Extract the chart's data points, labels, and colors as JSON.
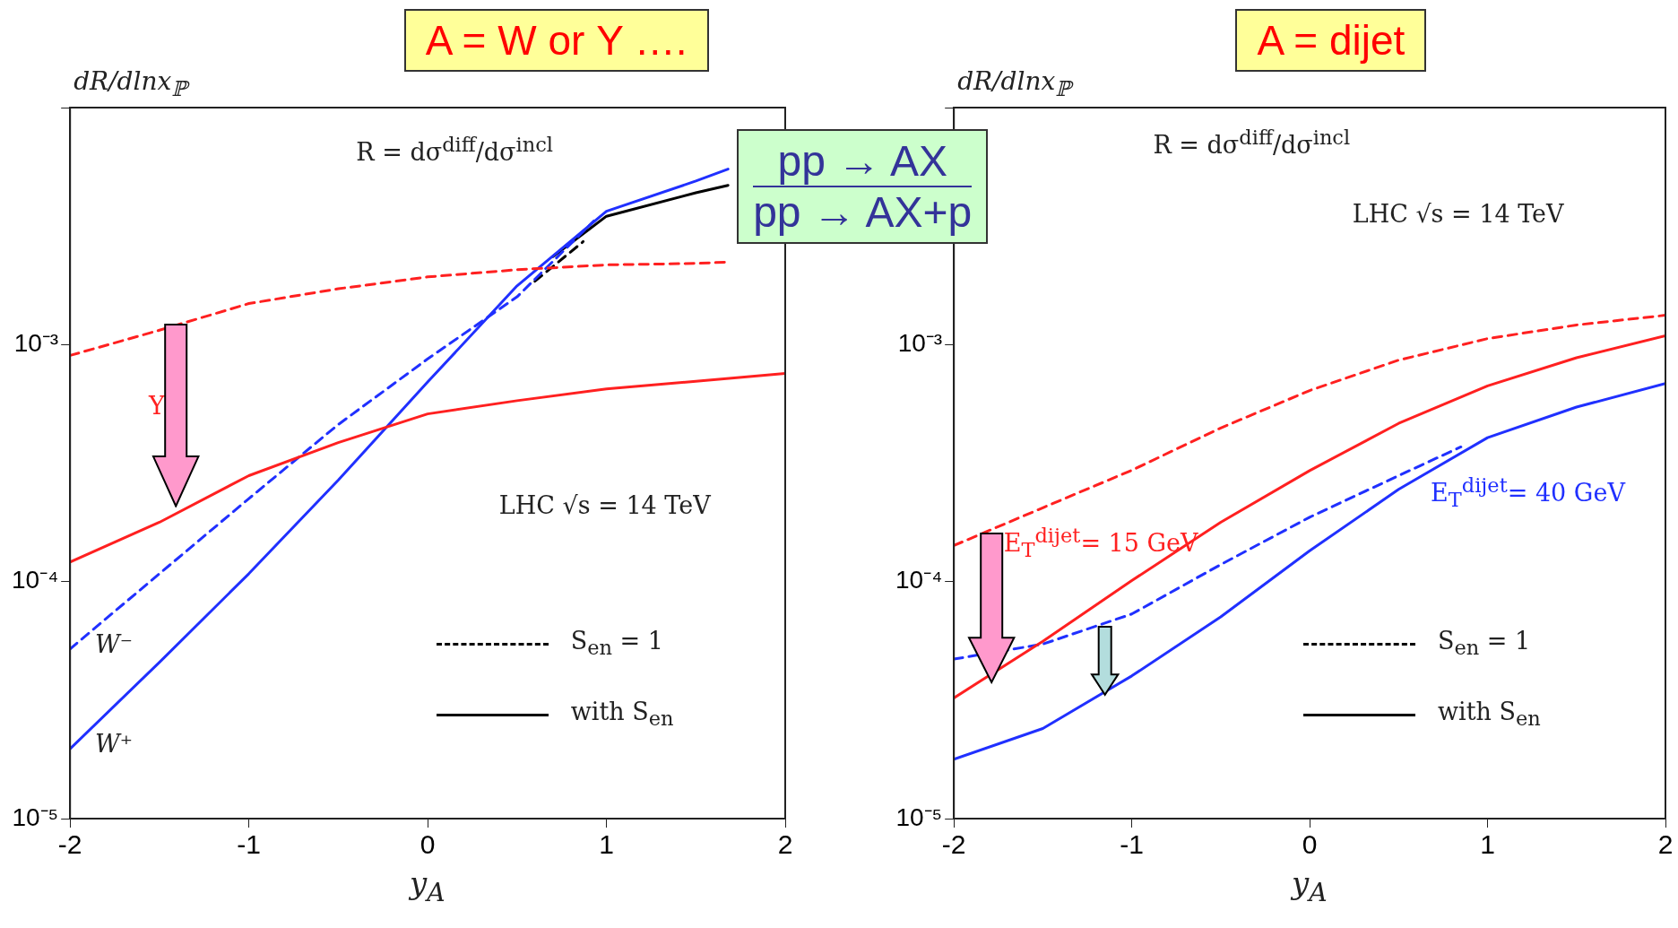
{
  "chart_data": [
    {
      "type": "line",
      "title": "A = W  or  Υ ….",
      "ylabel": "dR/dlnx$_{ℙ}$",
      "xlabel": "y$_{A}$",
      "log": "y",
      "grid": false,
      "xlim": [
        -2,
        2
      ],
      "xticks": [
        -2,
        -1,
        0,
        1,
        2
      ],
      "ylim": [
        1e-05,
        0.01
      ],
      "yticks": [
        {
          "value": 1e-05,
          "label": "10⁻⁵"
        },
        {
          "value": 0.0001,
          "label": "10⁻⁴"
        },
        {
          "value": 0.001,
          "label": "10⁻³"
        },
        {
          "value": 0.01,
          "label": null
        }
      ],
      "x": [
        -2,
        -1.5,
        -1,
        -0.5,
        0,
        0.5,
        1,
        1.5,
        1.68
      ],
      "series": [
        {
          "color": "#ff2020",
          "line_style": "dashed",
          "values": [
            0.0009,
            0.00115,
            0.00149,
            0.00172,
            0.00193,
            0.00207,
            0.00217,
            0.0022,
            0.00223
          ]
        },
        {
          "color": "#ff2020",
          "line_style": "solid",
          "x": [
            -2,
            -1.5,
            -1,
            -0.5,
            0,
            0.5,
            1,
            1.5,
            2
          ],
          "values": [
            0.000121,
            0.000178,
            0.00028,
            0.000386,
            0.00051,
            0.00058,
            0.00065,
            0.0007,
            0.000755
          ]
        },
        {
          "color": "#2030ff",
          "line_style": "dashed",
          "x": [
            -2,
            -1.5,
            -1,
            -0.5,
            0,
            0.5,
            0.93
          ],
          "values": [
            5.2e-05,
            0.000108,
            0.000224,
            0.00046,
            0.00087,
            0.00159,
            0.00333
          ]
        },
        {
          "color": "#2030ff",
          "line_style": "solid",
          "values": [
            1.97e-05,
            4.57e-05,
            0.000108,
            0.000268,
            0.000695,
            0.00177,
            0.00365,
            0.0049,
            0.0055
          ]
        },
        {
          "color": "#000000",
          "line_style": "dashed",
          "x": [
            0.6,
            0.87
          ],
          "values": [
            0.00185,
            0.00272
          ]
        },
        {
          "color": "#000000",
          "line_style": "solid",
          "x": [
            0.7,
            1,
            1.5,
            1.68
          ],
          "values": [
            0.00235,
            0.00348,
            0.00437,
            0.0047
          ]
        }
      ],
      "annotations": [
        "R = dσ$^{diff}$/dσ$^{incl}$",
        "LHC  √s = 14 TeV",
        "S$_{en}$ = 1",
        "with S$_{en}$",
        "pp → AX",
        "pp → AX+p",
        "Υ",
        "W⁻",
        "W⁺"
      ]
    },
    {
      "type": "line",
      "title": "A =  dijet",
      "ylabel": "dR/dlnx$_{ℙ}$",
      "xlabel": "y$_{A}$",
      "log": "y",
      "grid": false,
      "xlim": [
        -2,
        2
      ],
      "xticks": [
        -2,
        -1,
        0,
        1,
        2
      ],
      "ylim": [
        1e-05,
        0.01
      ],
      "yticks": [
        {
          "value": 1e-05,
          "label": "10⁻⁵"
        },
        {
          "value": 0.0001,
          "label": "10⁻⁴"
        },
        {
          "value": 0.001,
          "label": "10⁻³"
        },
        {
          "value": 0.01,
          "label": null
        }
      ],
      "x": [
        -2,
        -1.5,
        -1,
        -0.5,
        0,
        0.5,
        1,
        1.5,
        2
      ],
      "series": [
        {
          "color": "#ff2020",
          "line_style": "dashed",
          "values": [
            0.000142,
            0.000205,
            0.000295,
            0.000445,
            0.00064,
            0.00086,
            0.00106,
            0.00121,
            0.00133
          ]
        },
        {
          "color": "#ff2020",
          "line_style": "solid",
          "values": [
            3.23e-05,
            5.6e-05,
            0.000101,
            0.000178,
            0.000294,
            0.000465,
            0.00067,
            0.00088,
            0.00109
          ]
        },
        {
          "color": "#2030ff",
          "line_style": "dashed",
          "x": [
            -2,
            -1.5,
            -1,
            -0.5,
            0,
            0.5,
            0.85
          ],
          "values": [
            4.71e-05,
            5.45e-05,
            7.3e-05,
            0.000118,
            0.000187,
            0.00028,
            0.00037
          ]
        },
        {
          "color": "#2030ff",
          "line_style": "solid",
          "values": [
            1.78e-05,
            2.4e-05,
            4e-05,
            7.1e-05,
            0.000135,
            0.000245,
            0.000405,
            0.000545,
            0.000685
          ]
        }
      ],
      "annotations": [
        "R = dσ$^{diff}$/dσ$^{incl}$",
        "LHC  √s = 14 TeV",
        "S$_{en}$ = 1",
        "with S$_{en}$",
        "E$_{T}$$^{dijet}$= 15 GeV",
        "E$_{T}$$^{dijet}$= 40 GeV"
      ]
    }
  ]
}
